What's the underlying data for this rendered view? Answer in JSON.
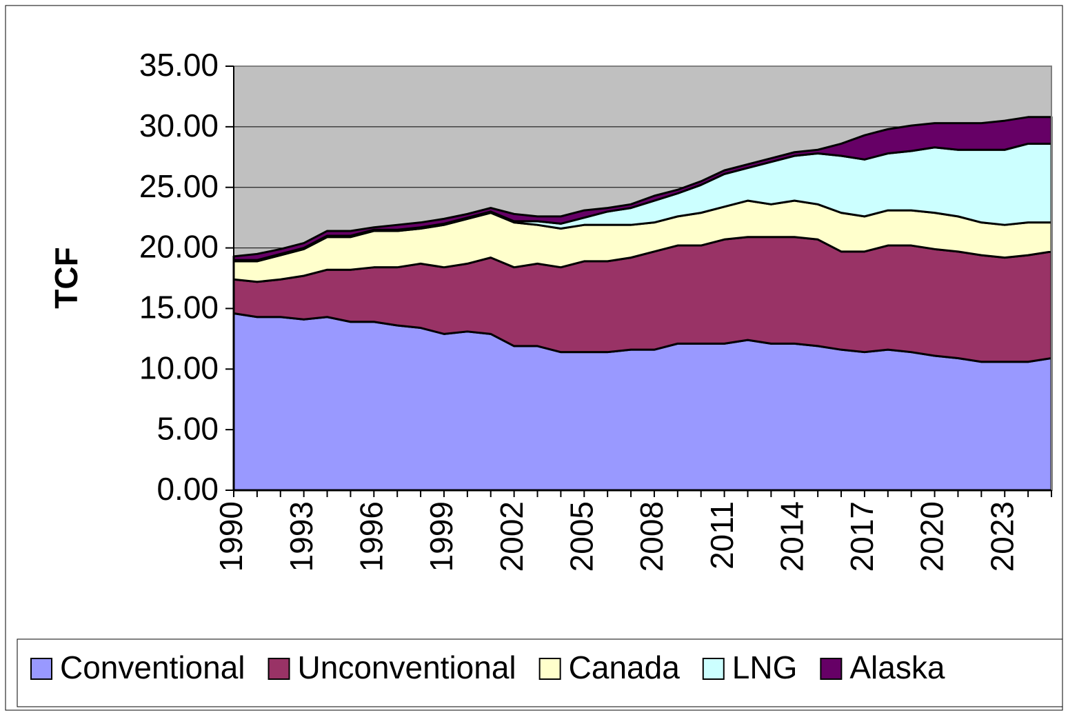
{
  "chart_data": {
    "type": "stacked_area",
    "ylabel": "TCF",
    "categories": [
      "1990",
      null,
      null,
      "1993",
      null,
      null,
      "1996",
      null,
      null,
      "1999",
      null,
      null,
      "2002",
      null,
      null,
      "2005",
      null,
      null,
      "2008",
      null,
      null,
      "2011",
      null,
      null,
      "2014",
      null,
      null,
      "2017",
      null,
      null,
      "2020",
      null,
      null,
      "2023",
      null,
      null
    ],
    "series": [
      {
        "name": "Conventional",
        "color": "#9999ff",
        "values": [
          14.6,
          14.3,
          14.3,
          14.1,
          14.3,
          13.9,
          13.9,
          13.6,
          13.4,
          12.9,
          13.1,
          12.9,
          11.9,
          11.9,
          11.4,
          11.4,
          11.4,
          11.6,
          11.6,
          12.1,
          12.1,
          12.1,
          12.4,
          12.1,
          12.1,
          11.9,
          11.6,
          11.4,
          11.6,
          11.4,
          11.1,
          10.9,
          10.6,
          10.6,
          10.6,
          10.9
        ]
      },
      {
        "name": "Unconventional",
        "color": "#993366",
        "values": [
          2.8,
          2.9,
          3.1,
          3.6,
          3.9,
          4.3,
          4.5,
          4.8,
          5.3,
          5.5,
          5.6,
          6.3,
          6.5,
          6.8,
          7.0,
          7.5,
          7.5,
          7.6,
          8.1,
          8.1,
          8.1,
          8.6,
          8.5,
          8.8,
          8.8,
          8.8,
          8.1,
          8.3,
          8.6,
          8.8,
          8.8,
          8.8,
          8.8,
          8.6,
          8.8,
          8.8
        ]
      },
      {
        "name": "Canada",
        "color": "#ffffcc",
        "values": [
          1.5,
          1.7,
          2.0,
          2.2,
          2.7,
          2.7,
          3.0,
          3.0,
          2.9,
          3.5,
          3.7,
          3.7,
          3.7,
          3.2,
          3.2,
          3.0,
          3.0,
          2.7,
          2.4,
          2.4,
          2.7,
          2.7,
          3.0,
          2.7,
          3.0,
          2.9,
          3.2,
          2.9,
          2.9,
          2.9,
          3.0,
          2.9,
          2.7,
          2.7,
          2.7,
          2.4
        ]
      },
      {
        "name": "LNG",
        "color": "#ccffff",
        "values": [
          0.1,
          0.1,
          0.1,
          0.1,
          0.1,
          0.1,
          0.1,
          0.1,
          0.1,
          0.1,
          0.1,
          0.1,
          0.1,
          0.3,
          0.4,
          0.6,
          1.1,
          1.4,
          1.8,
          1.9,
          2.3,
          2.7,
          2.7,
          3.5,
          3.7,
          4.2,
          4.7,
          4.7,
          4.7,
          4.9,
          5.4,
          5.5,
          6.0,
          6.2,
          6.5,
          6.5
        ]
      },
      {
        "name": "Alaska",
        "color": "#660066",
        "values": [
          0.3,
          0.5,
          0.4,
          0.4,
          0.4,
          0.4,
          0.2,
          0.4,
          0.4,
          0.4,
          0.3,
          0.3,
          0.6,
          0.4,
          0.6,
          0.6,
          0.3,
          0.3,
          0.4,
          0.3,
          0.3,
          0.3,
          0.3,
          0.3,
          0.3,
          0.3,
          1.0,
          2.0,
          2.0,
          2.1,
          2.0,
          2.2,
          2.2,
          2.4,
          2.2,
          2.2
        ]
      }
    ],
    "ylim": [
      0,
      35
    ],
    "yticks": [
      {
        "value": 0,
        "label": "0.00"
      },
      {
        "value": 5,
        "label": "5.00"
      },
      {
        "value": 10,
        "label": "10.00"
      },
      {
        "value": 15,
        "label": "15.00"
      },
      {
        "value": 20,
        "label": "20.00"
      },
      {
        "value": 25,
        "label": "25.00"
      },
      {
        "value": 30,
        "label": "30.00"
      },
      {
        "value": 35,
        "label": "35.00"
      }
    ],
    "grid": true,
    "plot_background": "#c0c0c0",
    "legend": "bottom"
  }
}
